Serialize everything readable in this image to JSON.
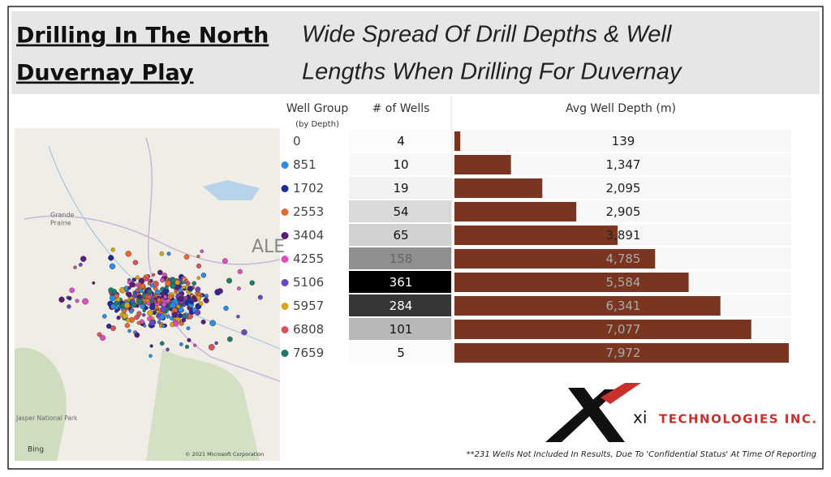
{
  "header": {
    "title_lines": [
      "Drilling In The North",
      "Duvernay Play"
    ],
    "subtitle_lines": [
      "Wide Spread Of Drill Depths & Well",
      "Lengths When Drilling For Duvernay"
    ]
  },
  "map": {
    "labels": [
      "Grande",
      "Prairie",
      "ALE",
      "Jasper National Park"
    ],
    "provider": "Bing",
    "copyright": "© 2021 Microsoft Corporation"
  },
  "table": {
    "columns": [
      "Well Group",
      "(by Depth)",
      "# of Wells",
      "Avg Well Depth (m)"
    ],
    "groups": [
      "0",
      "851",
      "1702",
      "2553",
      "3404",
      "4255",
      "5106",
      "5957",
      "6808",
      "7659"
    ],
    "group_colors": [
      null,
      "#2b8ce6",
      "#1f2a9e",
      "#e8692b",
      "#5c1a7a",
      "#e04ec0",
      "#6a45c8",
      "#d9a517",
      "#d9535e",
      "#1f7a6e"
    ],
    "wells": [
      4,
      10,
      19,
      54,
      65,
      158,
      361,
      284,
      101,
      5
    ],
    "depths": [
      139,
      1347,
      2095,
      2905,
      3891,
      4785,
      5584,
      6341,
      7077,
      7972
    ],
    "depth_labels": [
      "139",
      "1,347",
      "2,095",
      "2,905",
      "3,891",
      "4,785",
      "5,584",
      "6,341",
      "7,077",
      "7,972"
    ],
    "bar_color": "#7a3520"
  },
  "logo": {
    "mark": "xi",
    "name": "TECHNOLOGIES INC."
  },
  "footnote": "**231 Wells Not Included In Results, Due To 'Confidential Status' At Time Of Reporting"
}
